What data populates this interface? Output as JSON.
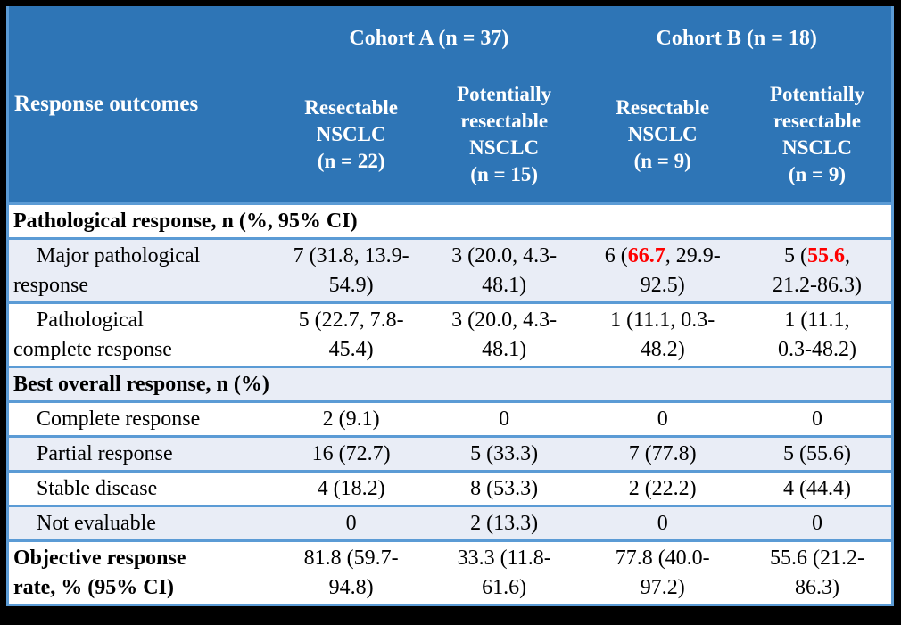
{
  "colors": {
    "header_bg": "#2E75B6",
    "header_text": "#FFFFFF",
    "shaded_row_bg": "#E9EDF6",
    "row_border": "#5B9BD5",
    "highlight_red": "#FF0000",
    "outer_frame": "#000000"
  },
  "header": {
    "row_label": "Response outcomes",
    "cohort_a": "Cohort A (n = 37)",
    "cohort_b": "Cohort B (n = 18)",
    "subs": [
      {
        "lines": [
          "Resectable",
          "NSCLC",
          "(n = 22)"
        ]
      },
      {
        "lines": [
          "Potentially",
          "resectable",
          "NSCLC",
          "(n = 15)"
        ]
      },
      {
        "lines": [
          "Resectable",
          "NSCLC",
          "(n = 9)"
        ]
      },
      {
        "lines": [
          "Potentially",
          "resectable",
          "NSCLC",
          "(n = 9)"
        ]
      }
    ]
  },
  "table": {
    "rows": [
      {
        "name": "section-pathological-response",
        "section": true,
        "bold": true,
        "shade": false,
        "indent": false,
        "label_lines": [
          "Pathological response, n (%, 95% CI)"
        ]
      },
      {
        "name": "row-major-pathological-response",
        "section": false,
        "bold": false,
        "shade": true,
        "indent": true,
        "label_lines": [
          "Major pathological",
          "response"
        ],
        "cells": [
          [
            [
              {
                "t": "7 (31.8, 13.9-"
              }
            ],
            [
              {
                "t": "54.9)"
              }
            ]
          ],
          [
            [
              {
                "t": "3 (20.0, 4.3-"
              }
            ],
            [
              {
                "t": "48.1)"
              }
            ]
          ],
          [
            [
              {
                "t": "6 ("
              },
              {
                "t": "66.7",
                "red": true
              },
              {
                "t": ", 29.9-"
              }
            ],
            [
              {
                "t": "92.5)"
              }
            ]
          ],
          [
            [
              {
                "t": "5 ("
              },
              {
                "t": "55.6",
                "red": true
              },
              {
                "t": ","
              }
            ],
            [
              {
                "t": "21.2-86.3)"
              }
            ]
          ]
        ]
      },
      {
        "name": "row-pathological-complete-response",
        "section": false,
        "bold": false,
        "shade": false,
        "indent": true,
        "label_lines": [
          "Pathological",
          "complete response"
        ],
        "cells": [
          [
            [
              {
                "t": "5 (22.7, 7.8-"
              }
            ],
            [
              {
                "t": "45.4)"
              }
            ]
          ],
          [
            [
              {
                "t": "3 (20.0, 4.3-"
              }
            ],
            [
              {
                "t": "48.1)"
              }
            ]
          ],
          [
            [
              {
                "t": "1 (11.1, 0.3-"
              }
            ],
            [
              {
                "t": "48.2)"
              }
            ]
          ],
          [
            [
              {
                "t": "1 (11.1,"
              }
            ],
            [
              {
                "t": "0.3-48.2)"
              }
            ]
          ]
        ]
      },
      {
        "name": "section-best-overall-response",
        "section": true,
        "bold": true,
        "shade": true,
        "indent": false,
        "label_lines": [
          "Best overall response, n (%)"
        ]
      },
      {
        "name": "row-complete-response",
        "section": false,
        "bold": false,
        "shade": false,
        "indent": true,
        "label_lines": [
          "Complete response"
        ],
        "cells": [
          [
            [
              {
                "t": "2 (9.1)"
              }
            ]
          ],
          [
            [
              {
                "t": "0"
              }
            ]
          ],
          [
            [
              {
                "t": "0"
              }
            ]
          ],
          [
            [
              {
                "t": "0"
              }
            ]
          ]
        ]
      },
      {
        "name": "row-partial-response",
        "section": false,
        "bold": false,
        "shade": true,
        "indent": true,
        "label_lines": [
          "Partial response"
        ],
        "cells": [
          [
            [
              {
                "t": "16 (72.7)"
              }
            ]
          ],
          [
            [
              {
                "t": "5 (33.3)"
              }
            ]
          ],
          [
            [
              {
                "t": "7 (77.8)"
              }
            ]
          ],
          [
            [
              {
                "t": "5 (55.6)"
              }
            ]
          ]
        ]
      },
      {
        "name": "row-stable-disease",
        "section": false,
        "bold": false,
        "shade": false,
        "indent": true,
        "label_lines": [
          "Stable disease"
        ],
        "cells": [
          [
            [
              {
                "t": "4 (18.2)"
              }
            ]
          ],
          [
            [
              {
                "t": "8 (53.3)"
              }
            ]
          ],
          [
            [
              {
                "t": "2 (22.2)"
              }
            ]
          ],
          [
            [
              {
                "t": "4 (44.4)"
              }
            ]
          ]
        ]
      },
      {
        "name": "row-not-evaluable",
        "section": false,
        "bold": false,
        "shade": true,
        "indent": true,
        "label_lines": [
          "Not evaluable"
        ],
        "cells": [
          [
            [
              {
                "t": "0"
              }
            ]
          ],
          [
            [
              {
                "t": "2 (13.3)"
              }
            ]
          ],
          [
            [
              {
                "t": "0"
              }
            ]
          ],
          [
            [
              {
                "t": "0"
              }
            ]
          ]
        ]
      },
      {
        "name": "row-objective-response-rate",
        "section": false,
        "bold": true,
        "shade": false,
        "indent": false,
        "label_lines": [
          "Objective response",
          "rate, % (95% CI)"
        ],
        "cells": [
          [
            [
              {
                "t": "81.8 (59.7-"
              }
            ],
            [
              {
                "t": "94.8)"
              }
            ]
          ],
          [
            [
              {
                "t": "33.3 (11.8-"
              }
            ],
            [
              {
                "t": "61.6)"
              }
            ]
          ],
          [
            [
              {
                "t": "77.8 (40.0-"
              }
            ],
            [
              {
                "t": "97.2)"
              }
            ]
          ],
          [
            [
              {
                "t": "55.6 (21.2-"
              }
            ],
            [
              {
                "t": "86.3)"
              }
            ]
          ]
        ]
      }
    ]
  }
}
